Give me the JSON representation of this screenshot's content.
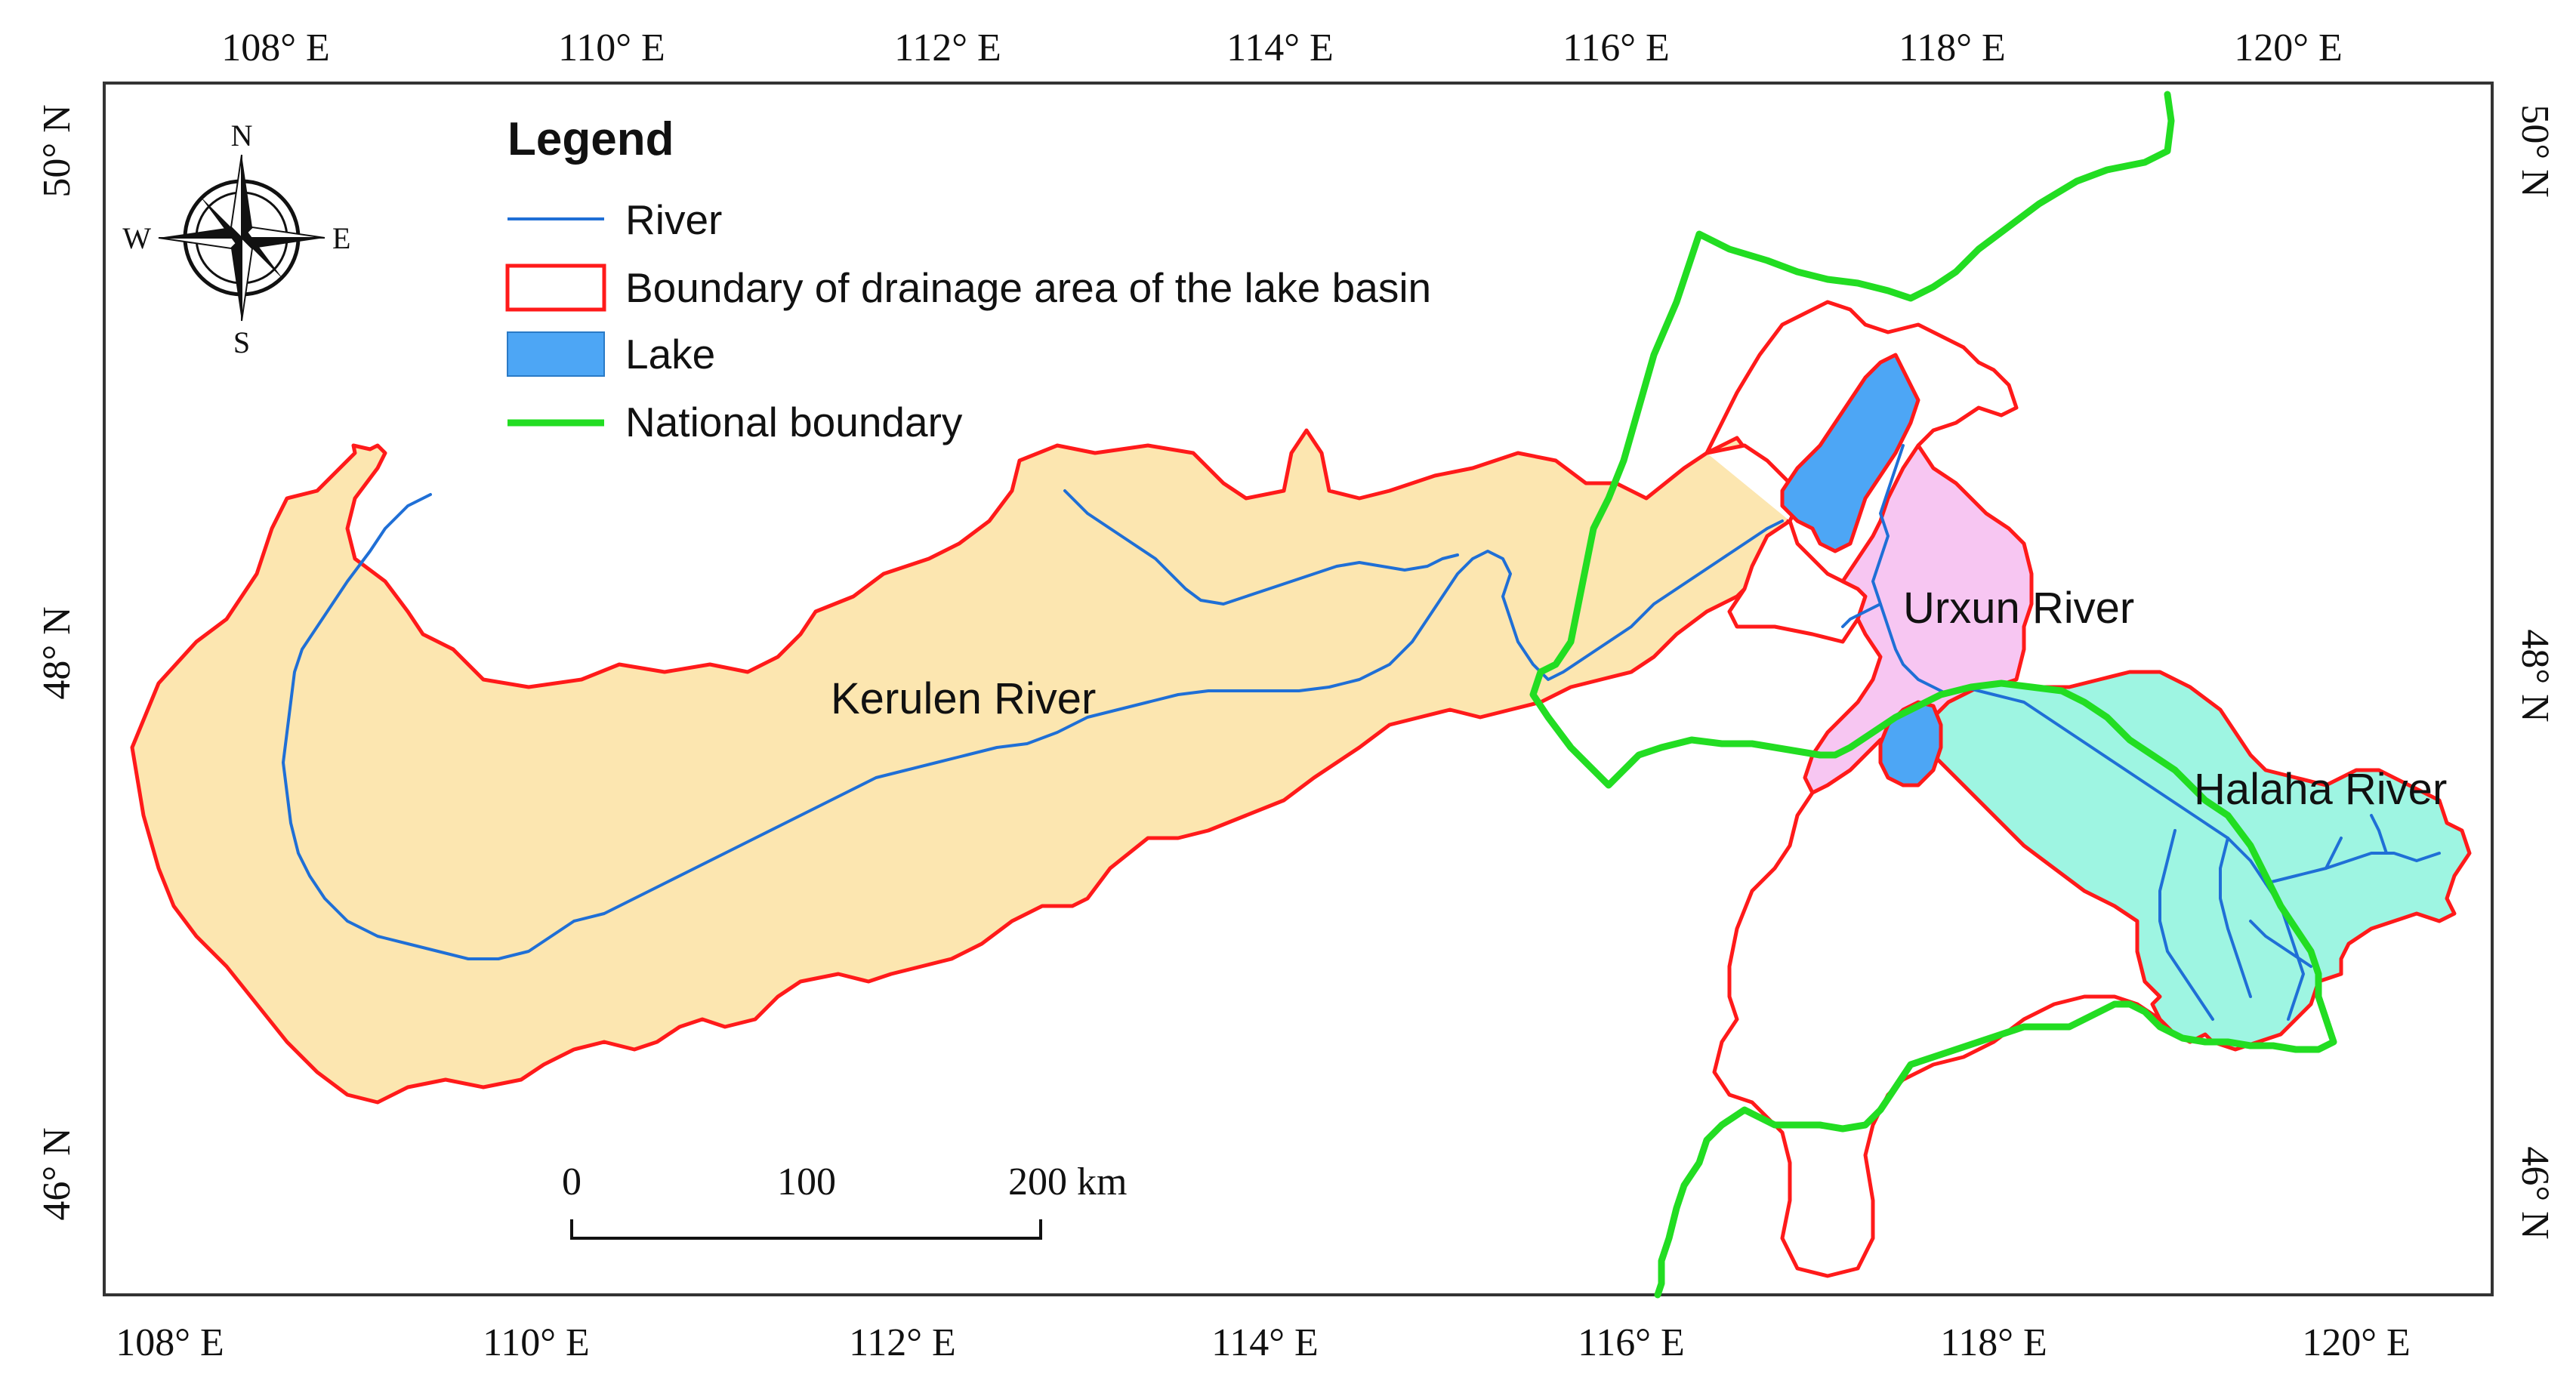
{
  "map": {
    "top_lon_labels": [
      "108° E",
      "110° E",
      "112° E",
      "114° E",
      "116° E",
      "118° E",
      "120° E"
    ],
    "bottom_lon_labels": [
      "108° E",
      "110° E",
      "112° E",
      "114° E",
      "116° E",
      "118° E",
      "120° E"
    ],
    "left_lat_labels": [
      "50° N",
      "48° N",
      "46° N"
    ],
    "right_lat_labels": [
      "50° N",
      "48° N",
      "46° N"
    ]
  },
  "legend": {
    "title": "Legend",
    "items": [
      {
        "label": "River",
        "color": "#1f6fd6"
      },
      {
        "label": "Boundary of drainage area of the lake basin",
        "color": "#ff1a1a"
      },
      {
        "label": "Lake",
        "color": "#4da6f5"
      },
      {
        "label": "National boundary",
        "color": "#22dd22"
      }
    ]
  },
  "places": {
    "kerulen": "Kerulen River",
    "urxun": "Urxun River",
    "halaha": "Halaha River"
  },
  "scale_bar": {
    "label_0": "0",
    "label_100": "100",
    "label_200": "200 km"
  },
  "compass": {
    "n": "N",
    "s": "S",
    "e": "E",
    "w": "W"
  },
  "colors": {
    "kerulen_fill": "#fce6b0",
    "urxun_fill": "#f7c6f2",
    "halaha_fill": "#9ef5e2",
    "lake_fill": "#4da6f5",
    "basin_boundary": "#ff1a1a",
    "national_boundary": "#22dd22",
    "river": "#1f6fd6"
  }
}
